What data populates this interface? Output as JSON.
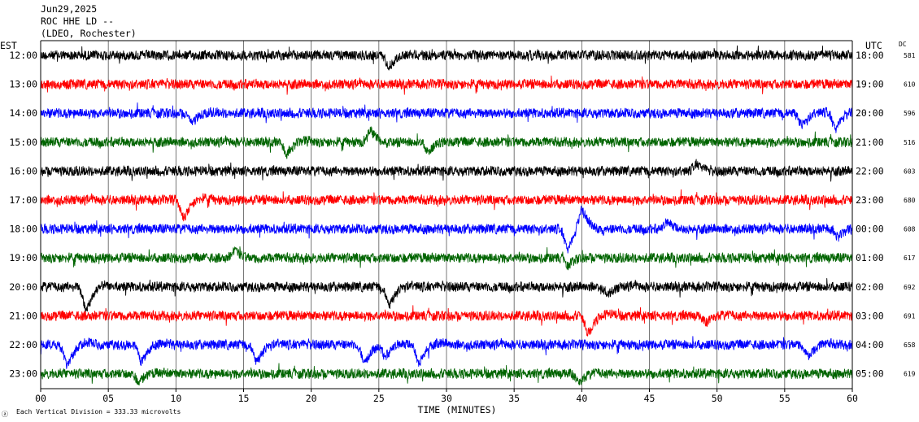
{
  "header": {
    "date": "Jun29,2025",
    "station": "ROC HHE LD --",
    "network": "(LDEO, Rochester)"
  },
  "left_axis_label": "EST",
  "right_axis_label": "UTC",
  "dc_label": "DC",
  "xlabel": "TIME (MINUTES)",
  "footer_note": "Each Vertical Division =  333.33 microvolts",
  "footer_mark": "ⓐ",
  "colors": {
    "black": "#000000",
    "red": "#ff0000",
    "blue": "#0000ff",
    "green": "#006400"
  },
  "chart_data": {
    "type": "line",
    "title": "ROC HHE LD --",
    "xlabel": "TIME (MINUTES)",
    "ylabel": "",
    "xlim": [
      0,
      60
    ],
    "x_ticks": [
      "00",
      "05",
      "10",
      "15",
      "20",
      "25",
      "30",
      "35",
      "40",
      "45",
      "50",
      "55",
      "60"
    ],
    "grid": "vertical lines every 5 minutes",
    "rows": [
      {
        "est": "12:00",
        "utc": "18:00",
        "dc": "581",
        "color": "black",
        "events": [
          {
            "minute": 25.8,
            "amp": 0.45
          }
        ]
      },
      {
        "est": "13:00",
        "utc": "19:00",
        "dc": "610",
        "color": "red",
        "events": []
      },
      {
        "est": "14:00",
        "utc": "20:00",
        "dc": "596",
        "color": "blue",
        "events": [
          {
            "minute": 11.2,
            "amp": 0.4
          },
          {
            "minute": 56.3,
            "amp": 0.5
          },
          {
            "minute": 58.8,
            "amp": 0.7
          }
        ]
      },
      {
        "est": "15:00",
        "utc": "21:00",
        "dc": "516",
        "color": "green",
        "events": [
          {
            "minute": 18.2,
            "amp": 0.5
          },
          {
            "minute": 24.4,
            "amp": -0.5
          },
          {
            "minute": 28.7,
            "amp": 0.4
          }
        ]
      },
      {
        "est": "16:00",
        "utc": "22:00",
        "dc": "603",
        "color": "black",
        "events": [
          {
            "minute": 48.5,
            "amp": -0.3
          }
        ]
      },
      {
        "est": "17:00",
        "utc": "23:00",
        "dc": "680",
        "color": "red",
        "events": [
          {
            "minute": 10.6,
            "amp": 0.75
          }
        ]
      },
      {
        "est": "18:00",
        "utc": "00:00",
        "dc": "608",
        "color": "blue",
        "events": [
          {
            "minute": 39.0,
            "amp": 0.9
          },
          {
            "minute": 40.0,
            "amp": -0.8
          },
          {
            "minute": 46.4,
            "amp": -0.3
          },
          {
            "minute": 59.0,
            "amp": 0.35
          }
        ]
      },
      {
        "est": "19:00",
        "utc": "01:00",
        "dc": "617",
        "color": "green",
        "events": [
          {
            "minute": 14.4,
            "amp": -0.3
          },
          {
            "minute": 39.0,
            "amp": 0.3
          }
        ]
      },
      {
        "est": "20:00",
        "utc": "02:00",
        "dc": "692",
        "color": "black",
        "events": [
          {
            "minute": 3.4,
            "amp": 1.0
          },
          {
            "minute": 25.8,
            "amp": 0.8
          },
          {
            "minute": 42.0,
            "amp": 0.3
          }
        ]
      },
      {
        "est": "21:00",
        "utc": "03:00",
        "dc": "691",
        "color": "red",
        "events": [
          {
            "minute": 40.5,
            "amp": 0.75
          },
          {
            "minute": 49.2,
            "amp": 0.3
          }
        ]
      },
      {
        "est": "22:00",
        "utc": "04:00",
        "dc": "658",
        "color": "blue",
        "events": [
          {
            "minute": 2.0,
            "amp": 0.9
          },
          {
            "minute": 7.5,
            "amp": 0.75
          },
          {
            "minute": 16.0,
            "amp": 0.75
          },
          {
            "minute": 24.0,
            "amp": 0.8
          },
          {
            "minute": 25.5,
            "amp": 0.6
          },
          {
            "minute": 28.0,
            "amp": 0.8
          },
          {
            "minute": 56.8,
            "amp": 0.5
          }
        ]
      },
      {
        "est": "23:00",
        "utc": "05:00",
        "dc": "619",
        "color": "green",
        "events": [
          {
            "minute": 7.3,
            "amp": 0.35
          },
          {
            "minute": 39.8,
            "amp": 0.4
          }
        ]
      }
    ]
  }
}
